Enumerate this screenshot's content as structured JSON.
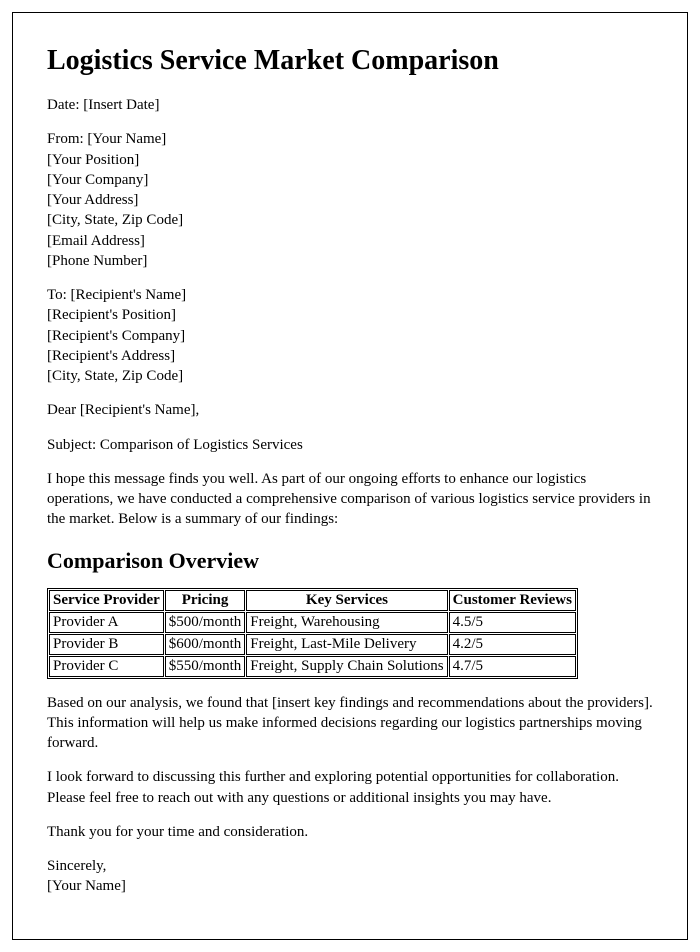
{
  "title": "Logistics Service Market Comparison",
  "date_line": "Date: [Insert Date]",
  "from_block": [
    "From: [Your Name]",
    "[Your Position]",
    "[Your Company]",
    "[Your Address]",
    "[City, State, Zip Code]",
    "[Email Address]",
    "[Phone Number]"
  ],
  "to_block": [
    "To: [Recipient's Name]",
    "[Recipient's Position]",
    "[Recipient's Company]",
    "[Recipient's Address]",
    "[City, State, Zip Code]"
  ],
  "salutation": "Dear [Recipient's Name],",
  "subject_line": "Subject: Comparison of Logistics Services",
  "intro_paragraph": "I hope this message finds you well. As part of our ongoing efforts to enhance our logistics operations, we have conducted a comprehensive comparison of various logistics service providers in the market. Below is a summary of our findings:",
  "overview_heading": "Comparison Overview",
  "table": {
    "columns": [
      "Service Provider",
      "Pricing",
      "Key Services",
      "Customer Reviews"
    ],
    "rows": [
      [
        "Provider A",
        "$500/month",
        "Freight, Warehousing",
        "4.5/5"
      ],
      [
        "Provider B",
        "$600/month",
        "Freight, Last-Mile Delivery",
        "4.2/5"
      ],
      [
        "Provider C",
        "$550/month",
        "Freight, Supply Chain Solutions",
        "4.7/5"
      ]
    ],
    "border_color": "#000000",
    "background_color": "#ffffff",
    "header_fontweight": "bold",
    "cell_fontsize": 15
  },
  "analysis_paragraph": "Based on our analysis, we found that [insert key findings and recommendations about the providers]. This information will help us make informed decisions regarding our logistics partnerships moving forward.",
  "closing_paragraph": "I look forward to discussing this further and exploring potential opportunities for collaboration. Please feel free to reach out with any questions or additional insights you may have.",
  "thanks_line": "Thank you for your time and consideration.",
  "signoff_block": [
    "Sincerely,",
    "[Your Name]"
  ],
  "styling": {
    "page_border_color": "#000000",
    "background_color": "#ffffff",
    "text_color": "#000000",
    "font_family": "Times New Roman",
    "h1_fontsize": 28,
    "h2_fontsize": 22,
    "body_fontsize": 15
  }
}
